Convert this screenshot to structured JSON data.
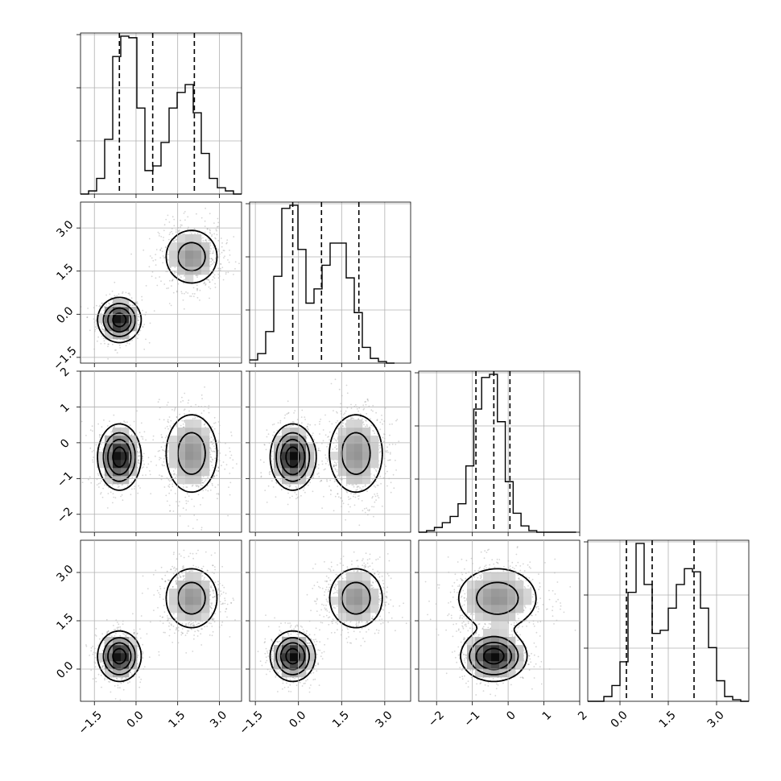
{
  "chart_data": {
    "type": "corner",
    "n_params": 4,
    "grid": true,
    "ranges": [
      [
        -2.0,
        3.8
      ],
      [
        -1.7,
        3.9
      ],
      [
        -2.5,
        2.0
      ],
      [
        -1.0,
        4.0
      ]
    ],
    "ticks": [
      {
        "values": [
          -1.5,
          0.0,
          1.5,
          3.0
        ],
        "labels": [
          "−1.5",
          "0.0",
          "1.5",
          "3.0"
        ]
      },
      {
        "values": [
          -1.5,
          0.0,
          1.5,
          3.0
        ],
        "labels": [
          "−1.5",
          "0.0",
          "1.5",
          "3.0"
        ]
      },
      {
        "values": [
          -2,
          -1,
          0,
          1,
          2
        ],
        "labels": [
          "−2",
          "−1",
          "0",
          "1",
          "2"
        ]
      },
      {
        "values": [
          0.0,
          1.5,
          3.0
        ],
        "labels": [
          "0.0",
          "1.5",
          "3.0"
        ]
      }
    ],
    "quantiles": [
      [
        -0.6,
        0.6,
        2.1
      ],
      [
        -0.2,
        0.8,
        2.1
      ],
      [
        -0.9,
        -0.4,
        0.05
      ],
      [
        0.2,
        1.0,
        2.3
      ]
    ],
    "histograms": [
      {
        "bin_start": -2.0,
        "bin_width": 0.29,
        "counts": [
          0,
          2,
          10,
          35,
          88,
          101,
          100,
          55,
          15,
          18,
          33,
          55,
          65,
          70,
          52,
          26,
          10,
          4,
          2,
          0
        ]
      },
      {
        "bin_start": -1.7,
        "bin_width": 0.28,
        "counts": [
          2,
          6,
          20,
          55,
          98,
          100,
          72,
          38,
          47,
          62,
          76,
          76,
          54,
          32,
          10,
          3,
          1,
          0
        ]
      },
      {
        "bin_start": -2.5,
        "bin_width": 0.22,
        "counts": [
          0,
          1,
          3,
          6,
          10,
          18,
          42,
          78,
          98,
          100,
          70,
          32,
          12,
          4,
          1,
          0,
          0,
          0,
          0,
          0
        ]
      },
      {
        "bin_start": -1.0,
        "bin_width": 0.25,
        "counts": [
          0,
          0,
          3,
          10,
          25,
          69,
          100,
          74,
          43,
          45,
          59,
          74,
          84,
          82,
          59,
          34,
          13,
          3,
          1,
          0
        ]
      }
    ],
    "modes": [
      {
        "weight": 0.5,
        "mean": [
          -0.6,
          -0.2,
          -0.4,
          0.4
        ],
        "sd": [
          0.38,
          0.38,
          0.45,
          0.38
        ]
      },
      {
        "weight": 0.5,
        "mean": [
          2.0,
          2.0,
          -0.3,
          2.2
        ],
        "sd": [
          0.55,
          0.55,
          0.65,
          0.55
        ]
      }
    ],
    "contour_levels": 4
  }
}
